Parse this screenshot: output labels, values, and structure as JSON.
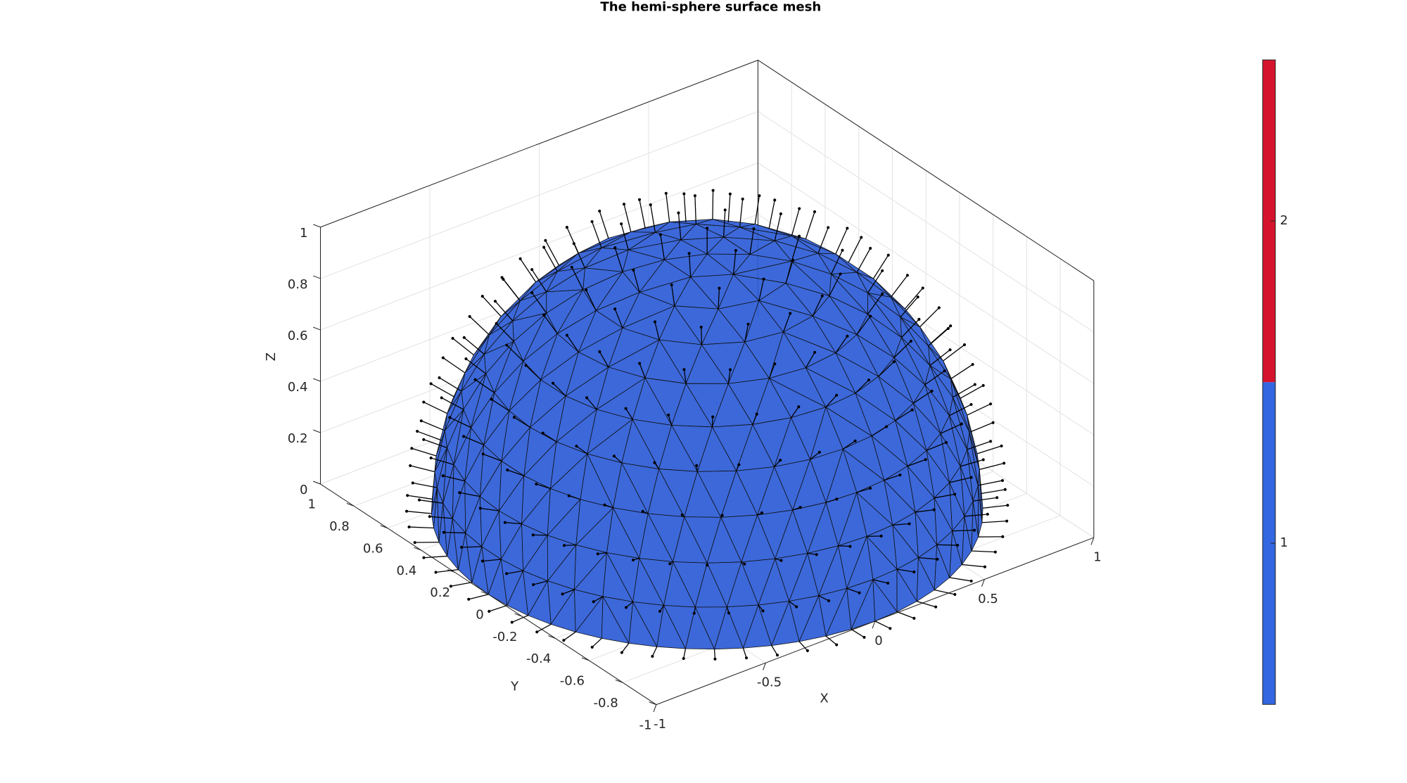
{
  "chart_data": {
    "type": "mesh3d",
    "title": "The hemi-sphere surface mesh",
    "xlabel": "X",
    "ylabel": "Y",
    "zlabel": "Z",
    "xlim": [
      -1,
      1
    ],
    "ylim": [
      -1,
      1
    ],
    "zlim": [
      0,
      1
    ],
    "xticks": [
      -1,
      -0.5,
      0,
      0.5,
      1
    ],
    "yticks": [
      -1,
      -0.8,
      -0.6,
      -0.4,
      -0.2,
      0,
      0.2,
      0.4,
      0.6,
      0.8,
      1
    ],
    "zticks": [
      0,
      0.2,
      0.4,
      0.6,
      0.8,
      1
    ],
    "grid": true,
    "face_color": "#2b5bd6",
    "colorbar": {
      "lim": [
        0.5,
        2.5
      ],
      "ticks": [
        1,
        2
      ],
      "colors": [
        "#3366e0",
        "#d5132c"
      ]
    }
  }
}
